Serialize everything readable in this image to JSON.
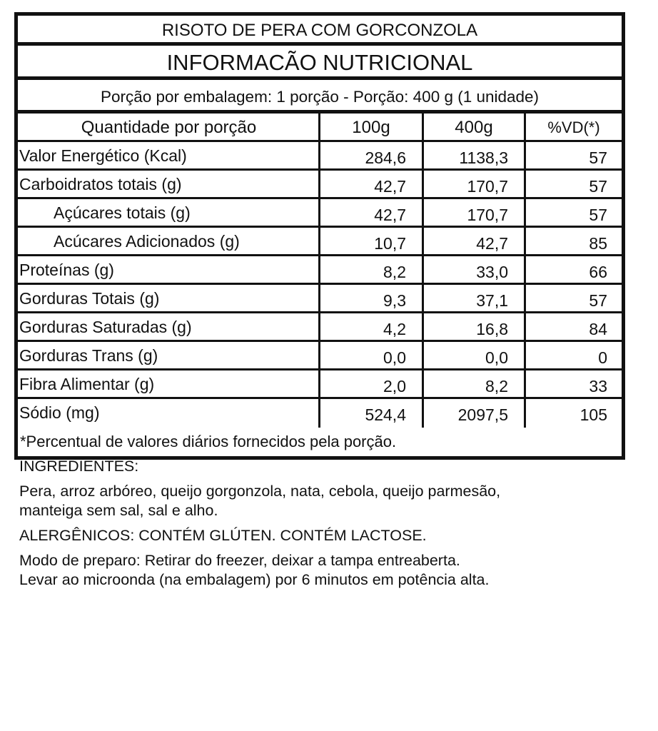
{
  "title": "RISOTO DE PERA COM GORCONZOLA",
  "heading": "INFORMACÃO NUTRICIONAL",
  "portion": "Porção por embalagem: 1 porção - Porção: 400 g (1 unidade)",
  "columns": [
    "Quantidade por porção",
    "100g",
    "400g",
    "%VD(*)"
  ],
  "rows": [
    {
      "name": "Valor Energético (Kcal)",
      "v100": "284,6",
      "v400": "1138,3",
      "vd": "57"
    },
    {
      "name": "Carboidratos totais (g)",
      "v100": "42,7",
      "v400": "170,7",
      "vd": "57"
    },
    {
      "name": "Açúcares totais (g)",
      "v100": "42,7",
      "v400": "170,7",
      "vd": "57"
    },
    {
      "name": "Acúcares Adicionados (g)",
      "v100": "10,7",
      "v400": "42,7",
      "vd": "85"
    },
    {
      "name": "Proteínas (g)",
      "v100": "8,2",
      "v400": "33,0",
      "vd": "66"
    },
    {
      "name": "Gorduras Totais (g)",
      "v100": "9,3",
      "v400": "37,1",
      "vd": "57"
    },
    {
      "name": "Gorduras Saturadas (g)",
      "v100": "4,2",
      "v400": "16,8",
      "vd": "84"
    },
    {
      "name": "Gorduras Trans (g)",
      "v100": "0,0",
      "v400": "0,0",
      "vd": "0"
    },
    {
      "name": "Fibra Alimentar (g)",
      "v100": "2,0",
      "v400": "8,2",
      "vd": "33"
    },
    {
      "name": "Sódio (mg)",
      "v100": "524,4",
      "v400": "2097,5",
      "vd": "105"
    }
  ],
  "footnote": "*Percentual de valores diários fornecidos pela porção.",
  "ingredients_label": "INGREDIENTES:",
  "ingredients_line1": "Pera, arroz arbóreo, queijo gorgonzola, nata, cebola, queijo parmesão,",
  "ingredients_line2": "manteiga sem sal, sal e alho.",
  "allergens": "ALERGÊNICOS: CONTÉM GLÚTEN. CONTÉM LACTOSE.",
  "prep_line1": "Modo de preparo: Retirar do freezer, deixar a tampa entreaberta.",
  "prep_line2": "Levar ao microonda (na embalagem) por 6 minutos em potência alta."
}
